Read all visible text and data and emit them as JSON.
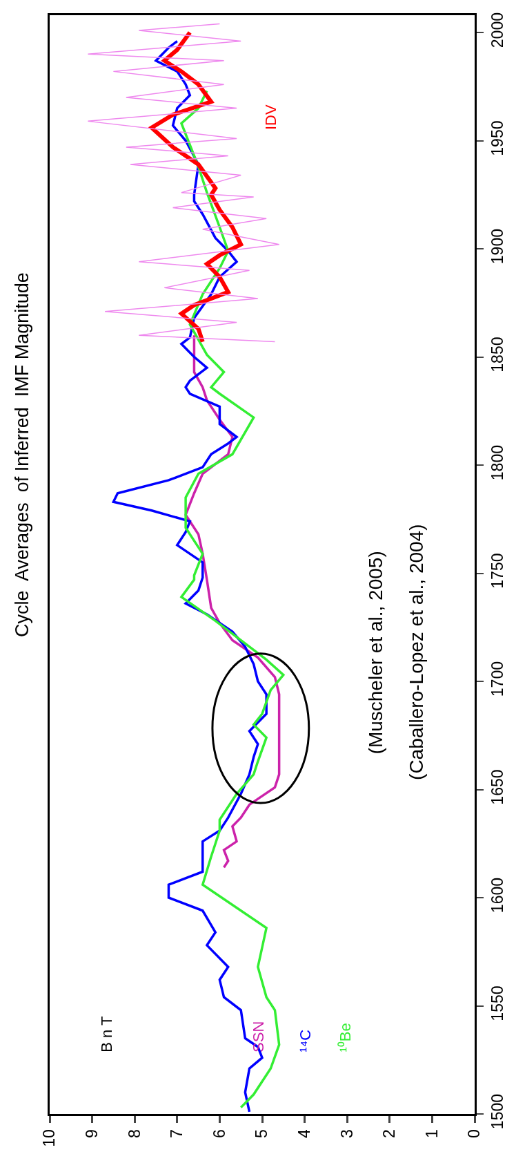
{
  "chart_data": {
    "type": "line",
    "title": "Cycle  Averages  of Inferred  IMF Magnitude",
    "annotations": [
      "B n T",
      "(Muscheler et al., 2005)",
      "(Caballero-Lopez et al., 2004)"
    ],
    "xlim": [
      10,
      0
    ],
    "xticks": [
      0,
      1,
      2,
      3,
      4,
      5,
      6,
      7,
      8,
      9,
      10
    ],
    "ylim": [
      1500,
      2008
    ],
    "yticks": [
      1500,
      1550,
      1600,
      1650,
      1700,
      1750,
      1800,
      1850,
      1900,
      1950,
      2000
    ],
    "grid": false,
    "legend": false,
    "series": [
      {
        "name": "SSN",
        "color": "#cc22aa",
        "values": [
          1614,
          1617,
          1622,
          1626,
          1633,
          1637,
          1643,
          1651,
          1657,
          1694,
          1702,
          1711,
          1719,
          1727,
          1734,
          1747,
          1759,
          1768,
          1777,
          1787,
          1796,
          1805,
          1813,
          1821,
          1830,
          1836,
          1843,
          1853,
          1860
        ],
        "x": [
          5.9,
          5.8,
          5.9,
          5.6,
          5.7,
          5.5,
          5.3,
          4.7,
          4.6,
          4.6,
          4.7,
          5.1,
          5.7,
          6.0,
          6.2,
          6.3,
          6.4,
          6.5,
          6.8,
          6.6,
          6.4,
          5.8,
          5.7,
          6.0,
          6.3,
          6.4,
          6.6,
          6.6,
          6.6
        ]
      },
      {
        "name": "¹⁴C",
        "color": "#0000ff",
        "values": [
          1501,
          1510,
          1521,
          1526,
          1531,
          1535,
          1548,
          1554,
          1562,
          1568,
          1578,
          1584,
          1594,
          1600,
          1606,
          1612,
          1620,
          1626,
          1631,
          1637,
          1648,
          1657,
          1665,
          1671,
          1677,
          1685,
          1694,
          1700,
          1708,
          1716,
          1723,
          1731,
          1736,
          1742,
          1748,
          1755,
          1763,
          1769,
          1774,
          1779,
          1783,
          1787,
          1793,
          1799,
          1805,
          1810,
          1813,
          1819,
          1827,
          1833,
          1836,
          1839,
          1845,
          1850,
          1856,
          1859,
          1868,
          1879,
          1887,
          1894,
          1899,
          1905,
          1916,
          1922,
          1925,
          1939,
          1950,
          1957,
          1965,
          1971,
          1976,
          1982,
          1987,
          1993,
          1996
        ],
        "x": [
          5.3,
          5.4,
          5.3,
          5.0,
          5.1,
          5.4,
          5.5,
          5.9,
          6.0,
          5.8,
          6.3,
          6.1,
          6.4,
          7.2,
          7.2,
          6.4,
          6.4,
          6.4,
          6.0,
          5.8,
          5.5,
          5.3,
          5.2,
          5.1,
          5.3,
          4.9,
          4.9,
          5.1,
          5.2,
          5.4,
          5.7,
          6.3,
          6.8,
          6.5,
          6.4,
          6.4,
          7.0,
          6.8,
          6.7,
          7.6,
          8.5,
          8.4,
          7.2,
          6.4,
          6.2,
          5.8,
          5.6,
          6.0,
          6.0,
          6.7,
          6.8,
          6.7,
          6.3,
          6.6,
          6.9,
          6.7,
          6.6,
          6.2,
          6.0,
          5.6,
          5.8,
          6.1,
          6.4,
          6.6,
          6.6,
          6.5,
          6.8,
          7.1,
          7.0,
          6.7,
          6.8,
          7.0,
          7.5,
          7.2,
          7.0
        ]
      },
      {
        "name": "¹⁰Be",
        "color": "#33ee33",
        "values": [
          1503,
          1509,
          1521,
          1532,
          1548,
          1554,
          1568,
          1586,
          1606,
          1619,
          1631,
          1636,
          1648,
          1657,
          1663,
          1674,
          1680,
          1685,
          1696,
          1703,
          1710,
          1716,
          1728,
          1739,
          1747,
          1749,
          1759,
          1771,
          1785,
          1796,
          1805,
          1822,
          1833,
          1836,
          1843,
          1851,
          1865,
          1879,
          1891,
          1899,
          1910,
          1926,
          1938,
          1958,
          1965,
          1973
        ],
        "x": [
          5.5,
          5.2,
          4.8,
          4.6,
          4.7,
          4.9,
          5.1,
          4.9,
          6.4,
          6.2,
          6.0,
          6.0,
          5.6,
          5.2,
          5.1,
          4.9,
          5.2,
          5.0,
          4.8,
          4.5,
          4.9,
          5.3,
          6.1,
          6.9,
          6.6,
          6.6,
          6.4,
          6.8,
          6.8,
          6.5,
          5.7,
          5.2,
          6.0,
          6.2,
          5.9,
          6.3,
          6.7,
          6.4,
          6.0,
          5.8,
          6.0,
          6.3,
          6.5,
          6.9,
          6.5,
          6.3
        ]
      },
      {
        "name": "IDV",
        "color": "#ff0000",
        "values": [
          1857,
          1863,
          1870,
          1874,
          1880,
          1887,
          1893,
          1897,
          1902,
          1910,
          1918,
          1925,
          1928,
          1939,
          1947,
          1956,
          1962,
          1968,
          1976,
          1982,
          1987,
          1992,
          2000
        ],
        "x": [
          6.4,
          6.5,
          6.9,
          6.6,
          5.8,
          6.0,
          6.3,
          6.0,
          5.5,
          5.7,
          6.0,
          6.2,
          6.1,
          6.5,
          7.1,
          7.6,
          7.1,
          6.2,
          6.5,
          6.9,
          7.3,
          7.0,
          6.7
        ]
      },
      {
        "color": "#ee88ee",
        "values": [
          1857,
          1860,
          1866,
          1871,
          1877,
          1882,
          1890,
          1894,
          1902,
          1909,
          1914,
          1919,
          1924,
          1926,
          1934,
          1939,
          1943,
          1947,
          1951,
          1959,
          1965,
          1970,
          1976,
          1982,
          1987,
          1990,
          1996,
          2001,
          2004
        ],
        "x": [
          4.7,
          7.9,
          5.6,
          8.7,
          5.1,
          7.3,
          5.3,
          7.9,
          4.6,
          6.4,
          4.9,
          7.1,
          5.2,
          6.9,
          5.5,
          8.1,
          5.8,
          8.2,
          5.6,
          9.1,
          5.6,
          8.2,
          5.9,
          8.5,
          5.9,
          9.1,
          5.5,
          7.9,
          6.0
        ]
      }
    ]
  }
}
